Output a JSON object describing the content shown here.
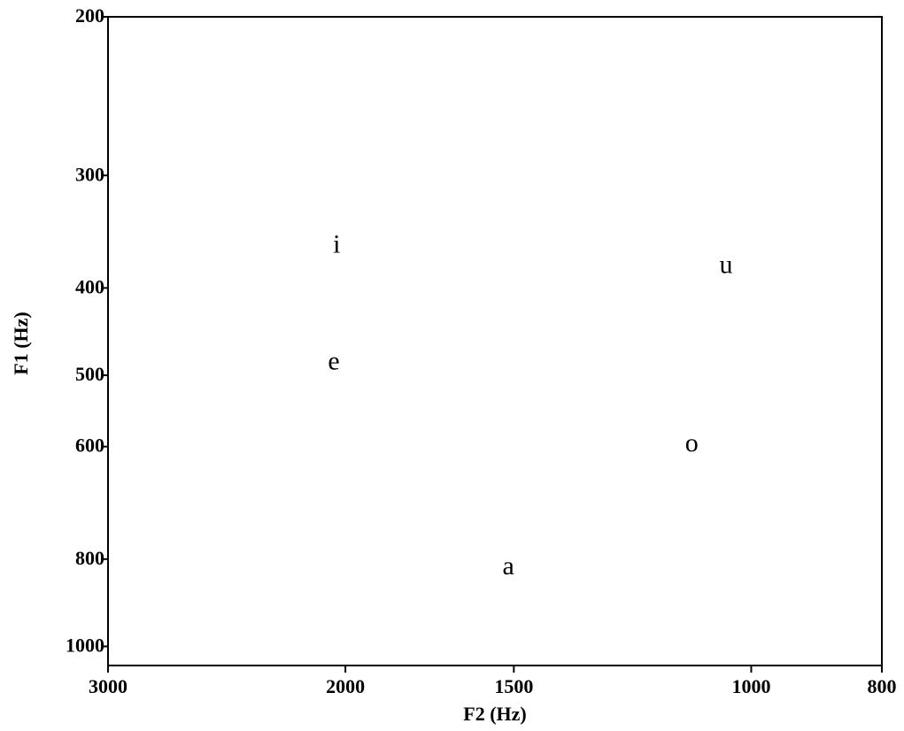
{
  "chart_data": {
    "type": "scatter",
    "xlabel": "F2 (Hz)",
    "ylabel": "F1 (Hz)",
    "labels": [
      "i",
      "e",
      "a",
      "o",
      "u"
    ],
    "x": [
      2030,
      2040,
      1514,
      1107,
      1044
    ],
    "y": [
      360,
      485,
      819,
      598,
      379
    ],
    "xlim": [
      3000,
      800
    ],
    "ylim": [
      200,
      1050
    ],
    "xticks": [
      3000,
      2000,
      1500,
      1000,
      800
    ],
    "yticks": [
      200,
      300,
      400,
      500,
      600,
      800,
      1000
    ],
    "xscale": "log",
    "yscale": "log",
    "color": "#000000"
  }
}
